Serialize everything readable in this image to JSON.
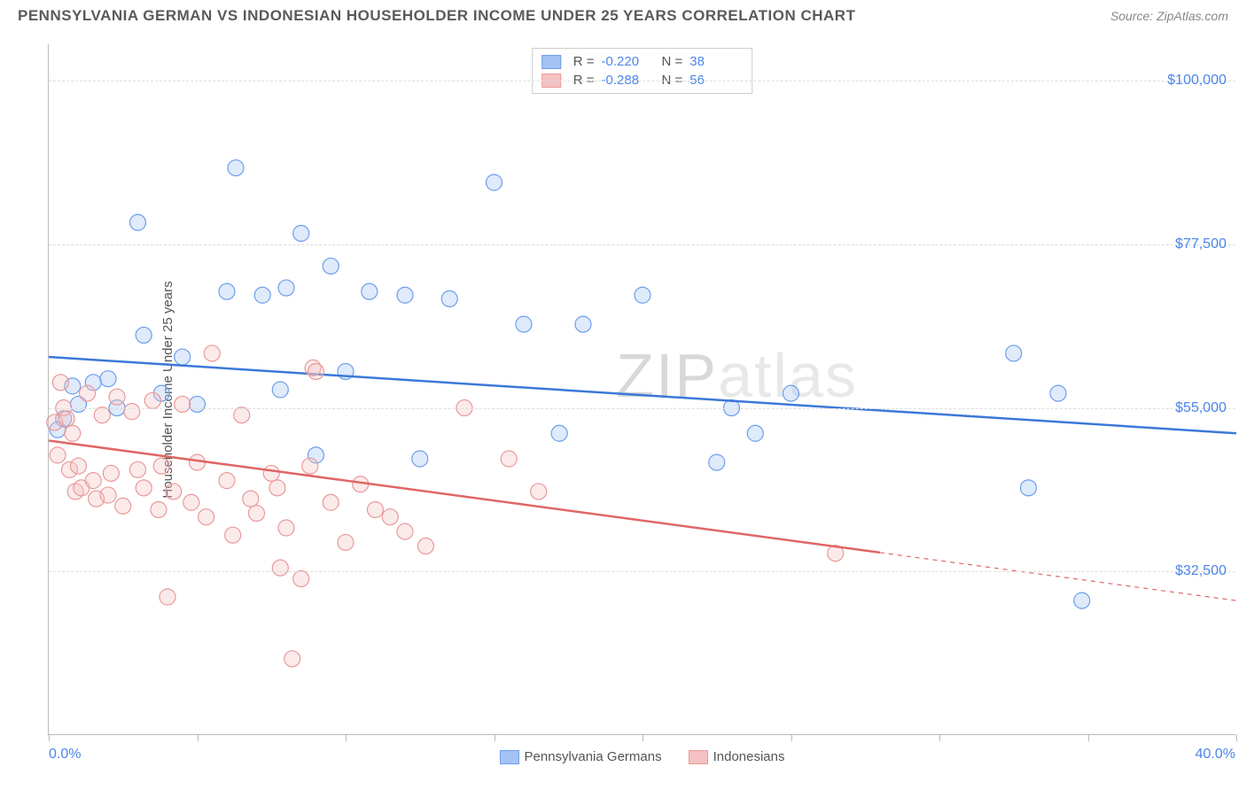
{
  "title": "PENNSYLVANIA GERMAN VS INDONESIAN HOUSEHOLDER INCOME UNDER 25 YEARS CORRELATION CHART",
  "source": "Source: ZipAtlas.com",
  "ylabel": "Householder Income Under 25 years",
  "watermark_bold": "ZIP",
  "watermark_rest": "atlas",
  "chart": {
    "type": "scatter",
    "background_color": "#ffffff",
    "grid_color": "#dddddd",
    "axis_color": "#bbbbbb",
    "text_color": "#555555",
    "value_color": "#4a86e8",
    "xlim": [
      0,
      40
    ],
    "ylim": [
      10000,
      105000
    ],
    "x_end_labels": [
      "0.0%",
      "40.0%"
    ],
    "y_ticks": [
      32500,
      55000,
      77500,
      100000
    ],
    "y_tick_labels": [
      "$32,500",
      "$55,000",
      "$77,500",
      "$100,000"
    ],
    "x_tick_positions": [
      0,
      5,
      10,
      15,
      20,
      25,
      30,
      35,
      40
    ],
    "marker_radius": 9,
    "marker_fill_opacity": 0.35,
    "line_width": 2.5,
    "series": [
      {
        "id": "pa_germans",
        "name": "Pennsylvania Germans",
        "color_fill": "#a4c2f4",
        "color_stroke": "#6d9eeb",
        "color_line": "#3c78d8",
        "r": -0.22,
        "n": 38,
        "trend": {
          "x1": 0,
          "y1": 62000,
          "x2": 40,
          "y2": 51500,
          "solid_until": 40
        },
        "points": [
          [
            0.3,
            52000
          ],
          [
            0.5,
            53500
          ],
          [
            0.8,
            58000
          ],
          [
            1.0,
            55500
          ],
          [
            1.5,
            58500
          ],
          [
            2.0,
            59000
          ],
          [
            2.3,
            55000
          ],
          [
            3.0,
            80500
          ],
          [
            3.2,
            65000
          ],
          [
            3.8,
            57000
          ],
          [
            4.5,
            62000
          ],
          [
            5.0,
            55500
          ],
          [
            6.0,
            71000
          ],
          [
            6.3,
            88000
          ],
          [
            7.2,
            70500
          ],
          [
            7.8,
            57500
          ],
          [
            8.0,
            71500
          ],
          [
            8.5,
            79000
          ],
          [
            9.0,
            48500
          ],
          [
            9.5,
            74500
          ],
          [
            10.0,
            60000
          ],
          [
            10.8,
            71000
          ],
          [
            12.0,
            70500
          ],
          [
            12.5,
            48000
          ],
          [
            13.5,
            70000
          ],
          [
            15.0,
            86000
          ],
          [
            16.0,
            66500
          ],
          [
            17.2,
            51500
          ],
          [
            18.0,
            66500
          ],
          [
            20.0,
            70500
          ],
          [
            22.5,
            47500
          ],
          [
            23.0,
            55000
          ],
          [
            23.8,
            51500
          ],
          [
            25.0,
            57000
          ],
          [
            32.5,
            62500
          ],
          [
            33.0,
            44000
          ],
          [
            34.0,
            57000
          ],
          [
            34.8,
            28500
          ]
        ]
      },
      {
        "id": "indonesians",
        "name": "Indonesians",
        "color_fill": "#f4c2c2",
        "color_stroke": "#ea9999",
        "color_line": "#e06666",
        "r": -0.288,
        "n": 56,
        "trend": {
          "x1": 0,
          "y1": 50500,
          "x2": 40,
          "y2": 28500,
          "solid_until": 28
        },
        "points": [
          [
            0.2,
            53000
          ],
          [
            0.3,
            48500
          ],
          [
            0.4,
            58500
          ],
          [
            0.5,
            55000
          ],
          [
            0.6,
            53500
          ],
          [
            0.7,
            46500
          ],
          [
            0.8,
            51500
          ],
          [
            0.9,
            43500
          ],
          [
            1.0,
            47000
          ],
          [
            1.1,
            44000
          ],
          [
            1.3,
            57000
          ],
          [
            1.5,
            45000
          ],
          [
            1.6,
            42500
          ],
          [
            1.8,
            54000
          ],
          [
            2.0,
            43000
          ],
          [
            2.1,
            46000
          ],
          [
            2.3,
            56500
          ],
          [
            2.5,
            41500
          ],
          [
            2.8,
            54500
          ],
          [
            3.0,
            46500
          ],
          [
            3.2,
            44000
          ],
          [
            3.5,
            56000
          ],
          [
            3.7,
            41000
          ],
          [
            3.8,
            47000
          ],
          [
            4.0,
            29000
          ],
          [
            4.2,
            43500
          ],
          [
            4.5,
            55500
          ],
          [
            4.8,
            42000
          ],
          [
            5.0,
            47500
          ],
          [
            5.3,
            40000
          ],
          [
            5.5,
            62500
          ],
          [
            6.0,
            45000
          ],
          [
            6.2,
            37500
          ],
          [
            6.5,
            54000
          ],
          [
            6.8,
            42500
          ],
          [
            7.0,
            40500
          ],
          [
            7.5,
            46000
          ],
          [
            7.7,
            44000
          ],
          [
            7.8,
            33000
          ],
          [
            8.0,
            38500
          ],
          [
            8.2,
            20500
          ],
          [
            8.5,
            31500
          ],
          [
            8.8,
            47000
          ],
          [
            8.9,
            60500
          ],
          [
            9.0,
            60000
          ],
          [
            9.5,
            42000
          ],
          [
            10.0,
            36500
          ],
          [
            10.5,
            44500
          ],
          [
            11.0,
            41000
          ],
          [
            11.5,
            40000
          ],
          [
            12.0,
            38000
          ],
          [
            12.7,
            36000
          ],
          [
            14.0,
            55000
          ],
          [
            15.5,
            48000
          ],
          [
            16.5,
            43500
          ],
          [
            26.5,
            35000
          ]
        ]
      }
    ]
  },
  "legend_top": {
    "r_label": "R =",
    "n_label": "N ="
  }
}
